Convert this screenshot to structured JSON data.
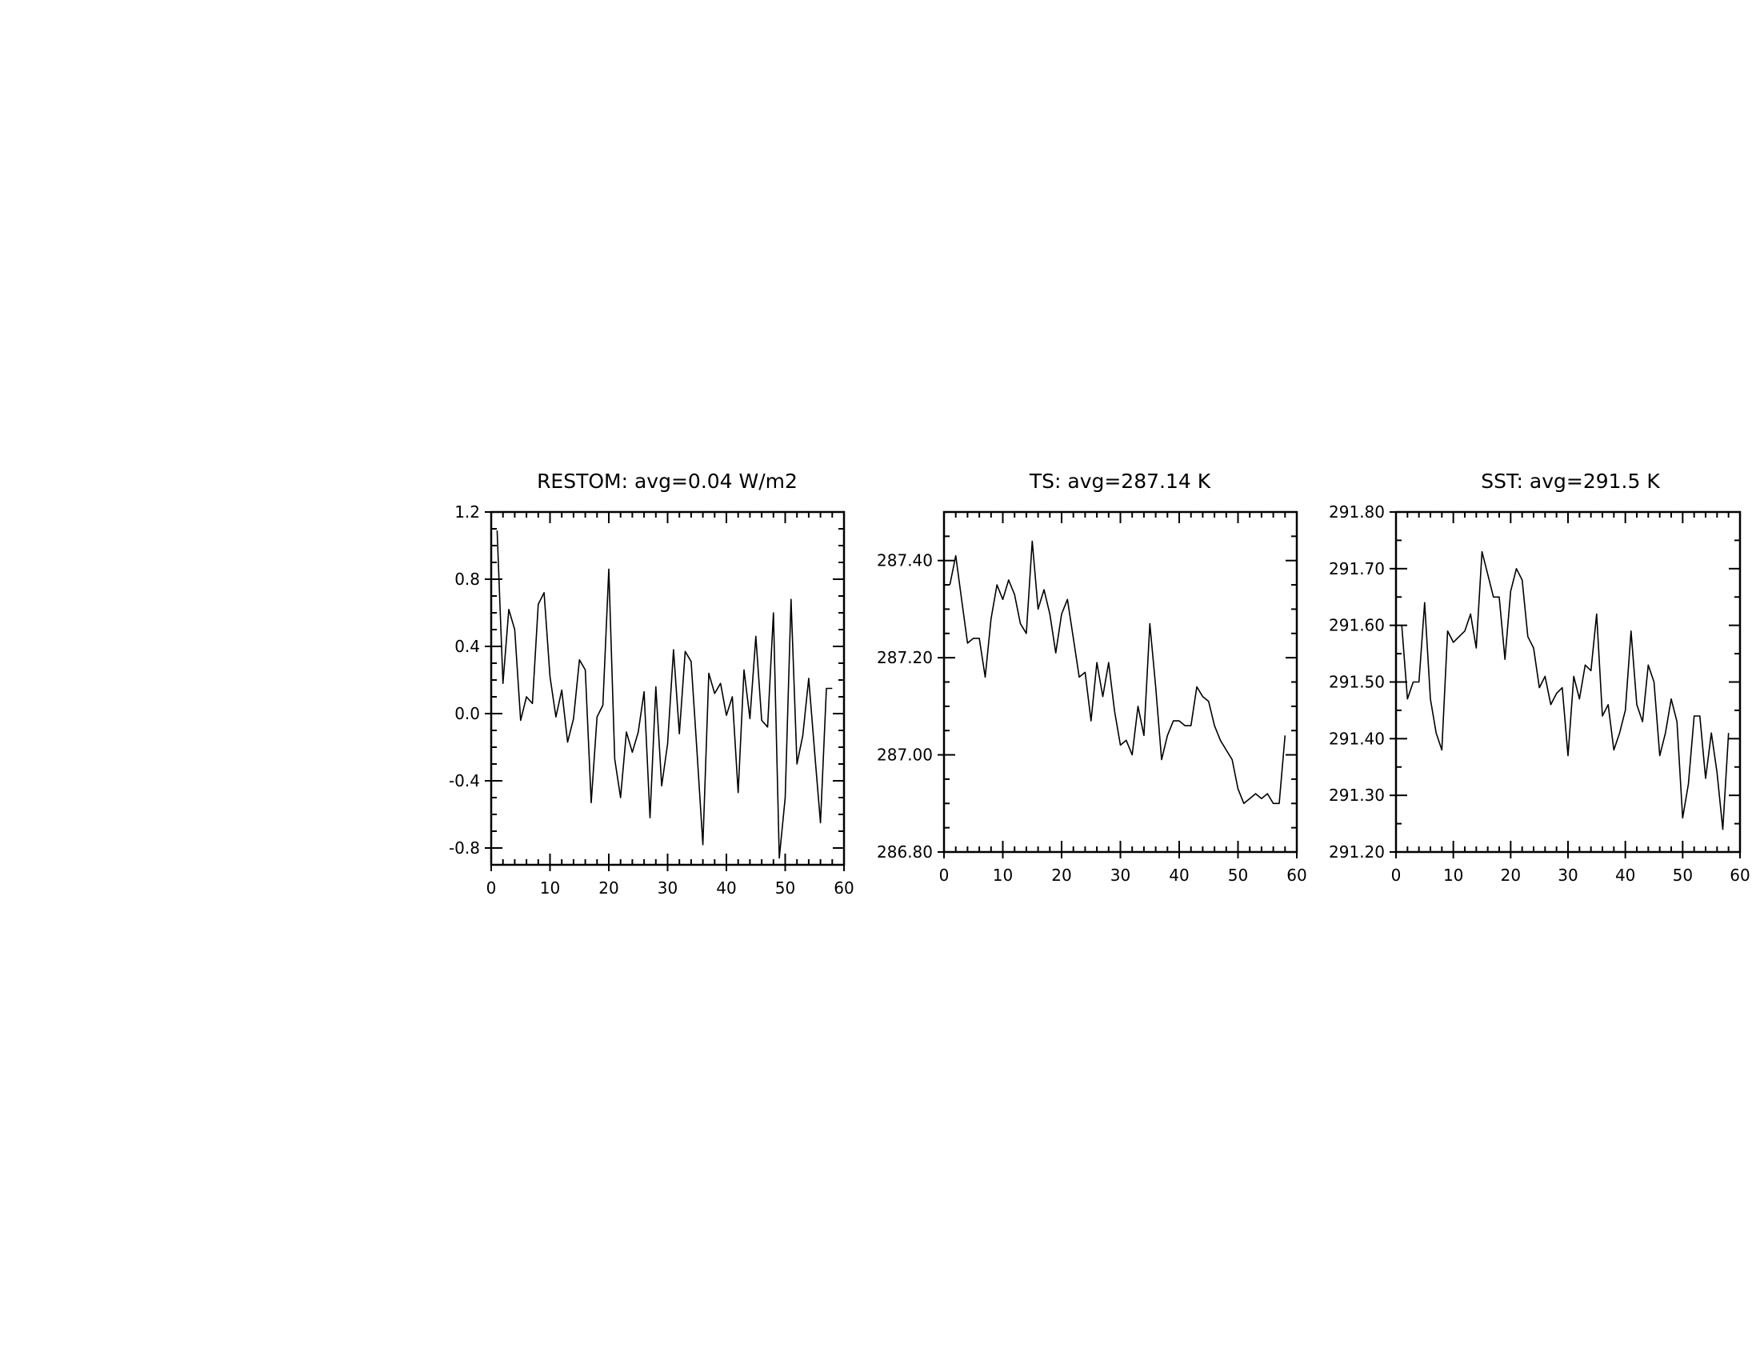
{
  "chart_data": [
    {
      "type": "line",
      "title": "RESTOM: avg=0.04 W/m2",
      "xlabel": "",
      "ylabel": "",
      "xlim": [
        0,
        60
      ],
      "ylim": [
        -0.9,
        1.2
      ],
      "x_major_ticks": [
        0,
        10,
        20,
        30,
        40,
        50,
        60
      ],
      "x_tick_labels": [
        "0",
        "10",
        "20",
        "30",
        "40",
        "50",
        "60"
      ],
      "y_major_ticks": [
        -0.8,
        -0.4,
        0.0,
        0.4,
        0.8,
        1.2
      ],
      "y_tick_labels": [
        "-0.8",
        "-0.4",
        "0.0",
        "0.4",
        "0.8",
        "1.2"
      ],
      "grid": false,
      "x": [
        1,
        2,
        3,
        4,
        5,
        6,
        7,
        8,
        9,
        10,
        11,
        12,
        13,
        14,
        15,
        16,
        17,
        18,
        19,
        20,
        21,
        22,
        23,
        24,
        25,
        26,
        27,
        28,
        29,
        30,
        31,
        32,
        33,
        34,
        35,
        36,
        37,
        38,
        39,
        40,
        41,
        42,
        43,
        44,
        45,
        46,
        47,
        48,
        49,
        50,
        51,
        52,
        53,
        54,
        55,
        56,
        57,
        58
      ],
      "values": [
        1.09,
        0.18,
        0.62,
        0.5,
        -0.04,
        0.1,
        0.06,
        0.65,
        0.72,
        0.22,
        -0.02,
        0.14,
        -0.17,
        -0.03,
        0.32,
        0.26,
        -0.53,
        -0.02,
        0.05,
        0.86,
        -0.27,
        -0.5,
        -0.11,
        -0.23,
        -0.11,
        0.13,
        -0.62,
        0.16,
        -0.43,
        -0.18,
        0.38,
        -0.12,
        0.37,
        0.31,
        -0.23,
        -0.78,
        0.24,
        0.12,
        0.18,
        -0.01,
        0.1,
        -0.47,
        0.26,
        -0.03,
        0.46,
        -0.04,
        -0.08,
        0.6,
        -0.86,
        -0.5,
        0.68,
        -0.3,
        -0.13,
        0.21,
        -0.23,
        -0.65,
        0.15,
        0.15
      ]
    },
    {
      "type": "line",
      "title": "TS: avg=287.14 K",
      "xlabel": "",
      "ylabel": "",
      "xlim": [
        0,
        60
      ],
      "ylim": [
        286.8,
        287.5
      ],
      "x_major_ticks": [
        0,
        10,
        20,
        30,
        40,
        50,
        60
      ],
      "x_tick_labels": [
        "0",
        "10",
        "20",
        "30",
        "40",
        "50",
        "60"
      ],
      "y_major_ticks": [
        286.8,
        287.0,
        287.2,
        287.4
      ],
      "y_tick_labels": [
        "286.80",
        "287.00",
        "287.20",
        "287.40"
      ],
      "grid": false,
      "x": [
        1,
        2,
        3,
        4,
        5,
        6,
        7,
        8,
        9,
        10,
        11,
        12,
        13,
        14,
        15,
        16,
        17,
        18,
        19,
        20,
        21,
        22,
        23,
        24,
        25,
        26,
        27,
        28,
        29,
        30,
        31,
        32,
        33,
        34,
        35,
        36,
        37,
        38,
        39,
        40,
        41,
        42,
        43,
        44,
        45,
        46,
        47,
        48,
        49,
        50,
        51,
        52,
        53,
        54,
        55,
        56,
        57,
        58
      ],
      "values": [
        287.35,
        287.41,
        287.32,
        287.23,
        287.24,
        287.24,
        287.16,
        287.28,
        287.35,
        287.32,
        287.36,
        287.33,
        287.27,
        287.25,
        287.44,
        287.3,
        287.34,
        287.29,
        287.21,
        287.29,
        287.32,
        287.24,
        287.16,
        287.17,
        287.07,
        287.19,
        287.12,
        287.19,
        287.09,
        287.02,
        287.03,
        287.0,
        287.1,
        287.04,
        287.27,
        287.14,
        286.99,
        287.04,
        287.07,
        287.07,
        287.06,
        287.06,
        287.14,
        287.12,
        287.11,
        287.06,
        287.03,
        287.01,
        286.99,
        286.93,
        286.9,
        286.91,
        286.92,
        286.91,
        286.92,
        286.9,
        286.9,
        287.04
      ]
    },
    {
      "type": "line",
      "title": "SST: avg=291.5 K",
      "xlabel": "",
      "ylabel": "",
      "xlim": [
        0,
        60
      ],
      "ylim": [
        291.2,
        291.8
      ],
      "x_major_ticks": [
        0,
        10,
        20,
        30,
        40,
        50,
        60
      ],
      "x_tick_labels": [
        "0",
        "10",
        "20",
        "30",
        "40",
        "50",
        "60"
      ],
      "y_major_ticks": [
        291.2,
        291.3,
        291.4,
        291.5,
        291.6,
        291.7,
        291.8
      ],
      "y_tick_labels": [
        "291.20",
        "291.30",
        "291.40",
        "291.50",
        "291.60",
        "291.70",
        "291.80"
      ],
      "grid": false,
      "x": [
        1,
        2,
        3,
        4,
        5,
        6,
        7,
        8,
        9,
        10,
        11,
        12,
        13,
        14,
        15,
        16,
        17,
        18,
        19,
        20,
        21,
        22,
        23,
        24,
        25,
        26,
        27,
        28,
        29,
        30,
        31,
        32,
        33,
        34,
        35,
        36,
        37,
        38,
        39,
        40,
        41,
        42,
        43,
        44,
        45,
        46,
        47,
        48,
        49,
        50,
        51,
        52,
        53,
        54,
        55,
        56,
        57,
        58
      ],
      "values": [
        291.6,
        291.47,
        291.5,
        291.5,
        291.64,
        291.47,
        291.41,
        291.38,
        291.59,
        291.57,
        291.58,
        291.59,
        291.62,
        291.56,
        291.73,
        291.69,
        291.65,
        291.65,
        291.54,
        291.66,
        291.7,
        291.68,
        291.58,
        291.56,
        291.49,
        291.51,
        291.46,
        291.48,
        291.49,
        291.37,
        291.51,
        291.47,
        291.53,
        291.52,
        291.62,
        291.44,
        291.46,
        291.38,
        291.41,
        291.45,
        291.59,
        291.46,
        291.43,
        291.53,
        291.5,
        291.37,
        291.41,
        291.47,
        291.43,
        291.26,
        291.32,
        291.44,
        291.44,
        291.33,
        291.41,
        291.34,
        291.24,
        291.41
      ]
    }
  ]
}
